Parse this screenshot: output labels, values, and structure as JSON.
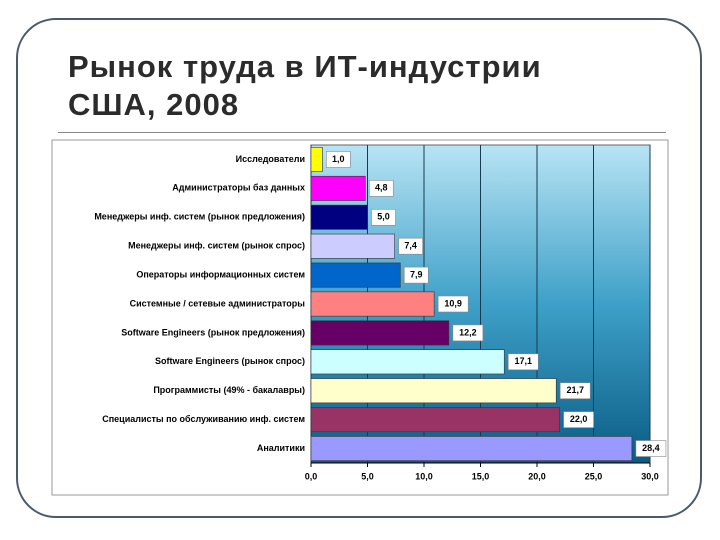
{
  "chart_data": {
    "type": "barh",
    "title": "Рынок труда в ИТ-индустрии США, 2008",
    "categories": [
      "Исследователи",
      "Администраторы баз данных",
      "Менеджеры инф. систем (рынок предложения)",
      "Менеджеры инф. систем (рынок спрос)",
      "Операторы информационных систем",
      "Системные / сетевые администраторы",
      "Software Engineers (рынок предложения)",
      "Software Engineers (рынок спрос)",
      "Программисты (49% - бакалавры)",
      "Специалисты по обслуживанию инф. систем",
      "Аналитики"
    ],
    "values": [
      1.0,
      4.8,
      5.0,
      7.4,
      7.9,
      10.9,
      12.2,
      17.1,
      21.7,
      22.0,
      28.4
    ],
    "value_labels": [
      "1,0",
      "4,8",
      "5,0",
      "7,4",
      "7,9",
      "10,9",
      "12,2",
      "17,1",
      "21,7",
      "22,0",
      "28,4"
    ],
    "colors": [
      "#ffff00",
      "#ff00ff",
      "#000080",
      "#ccccff",
      "#0066cc",
      "#ff8080",
      "#660066",
      "#ccffff",
      "#ffffcc",
      "#993366",
      "#9999ff"
    ],
    "xlim": [
      0,
      30
    ],
    "xticks": [
      {
        "value": 0,
        "label": "0,0"
      },
      {
        "value": 5,
        "label": "5,0"
      },
      {
        "value": 10,
        "label": "10,0"
      },
      {
        "value": 15,
        "label": "15,0"
      },
      {
        "value": 20,
        "label": "20,0"
      },
      {
        "value": 25,
        "label": "25,0"
      },
      {
        "value": 30,
        "label": "30,0"
      }
    ],
    "grid": true
  }
}
